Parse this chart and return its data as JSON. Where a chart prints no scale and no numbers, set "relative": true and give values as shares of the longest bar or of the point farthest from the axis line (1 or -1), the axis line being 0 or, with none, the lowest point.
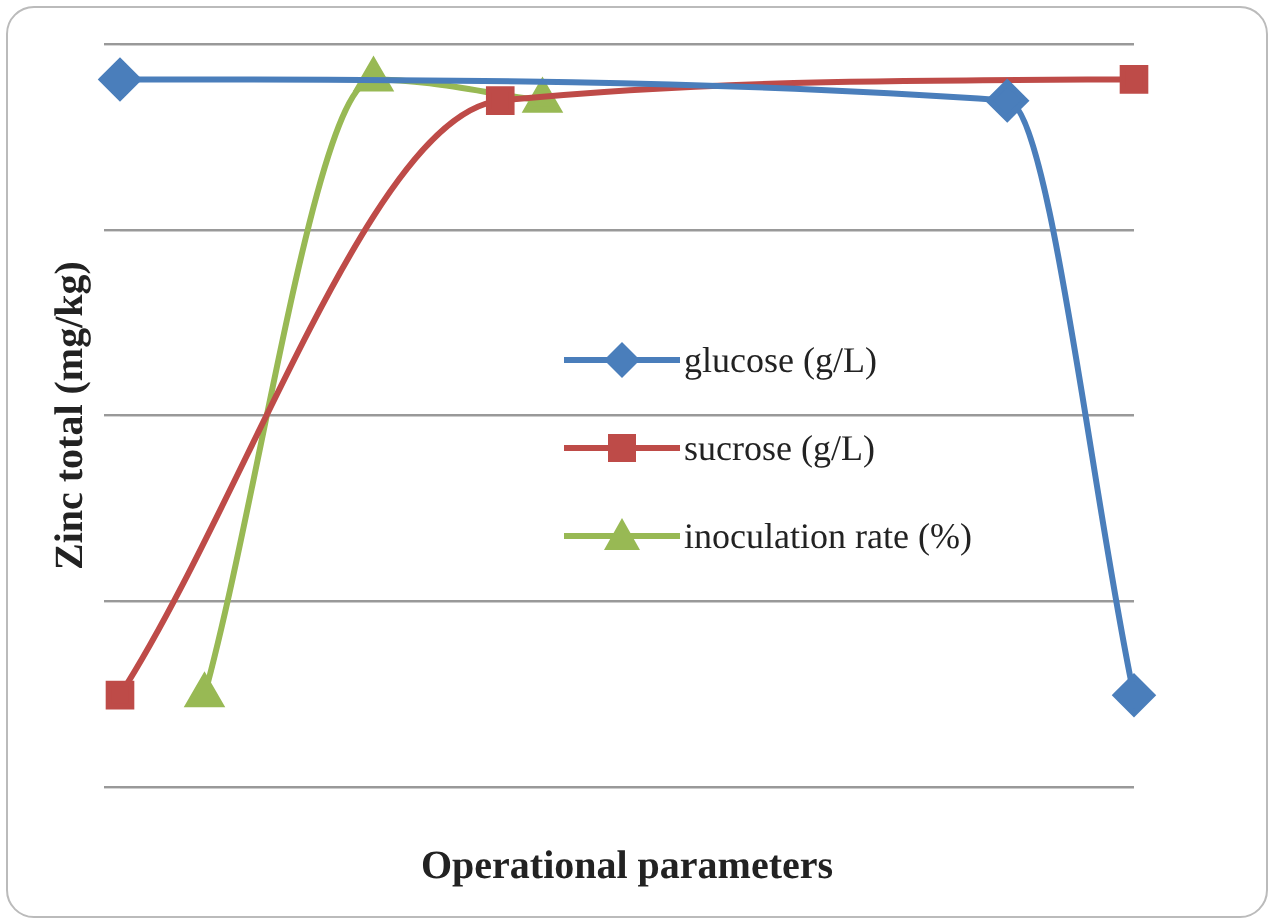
{
  "chart_data": {
    "type": "line",
    "xlabel": "Operational parameters",
    "ylabel": "Zinc total (mg/kg)",
    "relative": true,
    "grid": "y",
    "legend": "right",
    "categories": [
      null,
      null,
      null,
      null,
      null,
      null,
      null,
      null,
      null,
      null,
      null,
      null,
      null,
      null,
      null,
      null,
      null,
      null,
      null,
      null,
      null,
      null,
      null,
      null,
      null
    ],
    "series": [
      {
        "name": "glucose (g/L)",
        "color": "#4a7ebb",
        "marker": "diamond",
        "values": [
          1,
          null,
          null,
          null,
          null,
          null,
          null,
          null,
          null,
          null,
          null,
          null,
          null,
          null,
          null,
          null,
          null,
          null,
          null,
          null,
          null,
          0.97,
          null,
          null,
          0.13
        ]
      },
      {
        "name": "sucrose (g/L)",
        "color": "#be4b48",
        "marker": "square",
        "values": [
          0.13,
          null,
          null,
          null,
          null,
          null,
          null,
          null,
          null,
          0.97,
          null,
          null,
          null,
          null,
          null,
          null,
          null,
          null,
          null,
          null,
          null,
          null,
          null,
          null,
          1
        ]
      },
      {
        "name": "inoculation rate (%)",
        "color": "#98b954",
        "marker": "triangle",
        "values": [
          null,
          null,
          0.13,
          null,
          null,
          null,
          1,
          null,
          null,
          null,
          0.97,
          null,
          null,
          null,
          null,
          null,
          null,
          null,
          null,
          null,
          null,
          null,
          null,
          null,
          null
        ]
      }
    ]
  }
}
